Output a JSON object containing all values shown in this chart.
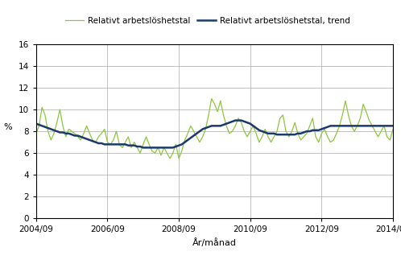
{
  "ylabel": "%",
  "xlabel": "År/månad",
  "legend_line1": "Relativt arbetslöshetstal",
  "legend_line2": "Relativt arbetslöshetstal, trend",
  "color_raw": "#8dc63f",
  "color_trend": "#1b3a6b",
  "ylim": [
    0,
    16
  ],
  "yticks": [
    0,
    2,
    4,
    6,
    8,
    10,
    12,
    14,
    16
  ],
  "xtick_labels": [
    "2004/09",
    "2006/09",
    "2008/09",
    "2010/09",
    "2012/09",
    "2014/09"
  ],
  "raw_values": [
    7.8,
    8.5,
    10.2,
    9.5,
    8.0,
    7.2,
    7.8,
    8.8,
    10.0,
    8.5,
    7.5,
    8.2,
    8.0,
    7.8,
    7.5,
    7.2,
    7.8,
    8.5,
    7.8,
    7.2,
    7.0,
    7.5,
    7.8,
    8.2,
    7.0,
    6.8,
    7.2,
    8.0,
    6.8,
    6.5,
    7.0,
    7.5,
    6.5,
    7.0,
    6.5,
    6.0,
    6.8,
    7.5,
    6.8,
    6.2,
    6.0,
    6.5,
    5.8,
    6.5,
    6.0,
    5.5,
    6.0,
    6.8,
    5.5,
    6.2,
    7.2,
    7.8,
    8.5,
    8.0,
    7.5,
    7.0,
    7.5,
    8.2,
    9.5,
    11.0,
    10.5,
    9.8,
    10.8,
    9.5,
    8.5,
    7.8,
    8.0,
    8.5,
    9.2,
    8.8,
    8.0,
    7.5,
    8.0,
    8.5,
    7.8,
    7.0,
    7.5,
    8.2,
    7.5,
    7.0,
    7.5,
    8.0,
    9.2,
    9.5,
    8.0,
    7.5,
    8.0,
    8.8,
    7.8,
    7.2,
    7.5,
    7.8,
    8.5,
    9.2,
    7.5,
    7.0,
    7.8,
    8.2,
    7.5,
    7.0,
    7.2,
    7.8,
    8.5,
    9.5,
    10.8,
    9.5,
    8.5,
    8.0,
    8.5,
    9.2,
    10.5,
    9.8,
    9.0,
    8.5,
    8.0,
    7.5,
    8.0,
    8.5,
    7.5,
    7.2,
    8.2
  ],
  "trend_values": [
    8.7,
    8.6,
    8.5,
    8.4,
    8.3,
    8.2,
    8.1,
    8.0,
    7.9,
    7.9,
    7.8,
    7.8,
    7.7,
    7.6,
    7.6,
    7.5,
    7.4,
    7.3,
    7.2,
    7.1,
    7.0,
    6.9,
    6.9,
    6.8,
    6.8,
    6.8,
    6.8,
    6.8,
    6.8,
    6.8,
    6.8,
    6.7,
    6.7,
    6.7,
    6.6,
    6.6,
    6.5,
    6.5,
    6.5,
    6.5,
    6.5,
    6.5,
    6.5,
    6.5,
    6.5,
    6.5,
    6.5,
    6.6,
    6.7,
    6.8,
    7.0,
    7.2,
    7.4,
    7.6,
    7.8,
    8.0,
    8.2,
    8.3,
    8.4,
    8.5,
    8.5,
    8.5,
    8.5,
    8.6,
    8.7,
    8.8,
    8.9,
    9.0,
    9.0,
    9.0,
    8.9,
    8.8,
    8.7,
    8.5,
    8.3,
    8.1,
    8.0,
    7.9,
    7.8,
    7.8,
    7.8,
    7.7,
    7.7,
    7.7,
    7.7,
    7.7,
    7.7,
    7.7,
    7.8,
    7.8,
    7.9,
    8.0,
    8.0,
    8.1,
    8.1,
    8.1,
    8.2,
    8.3,
    8.4,
    8.5,
    8.5,
    8.5,
    8.5,
    8.5,
    8.5,
    8.5,
    8.5,
    8.5,
    8.5,
    8.5,
    8.5,
    8.5,
    8.5,
    8.5,
    8.5,
    8.5,
    8.5,
    8.5,
    8.5,
    8.5,
    8.5
  ]
}
